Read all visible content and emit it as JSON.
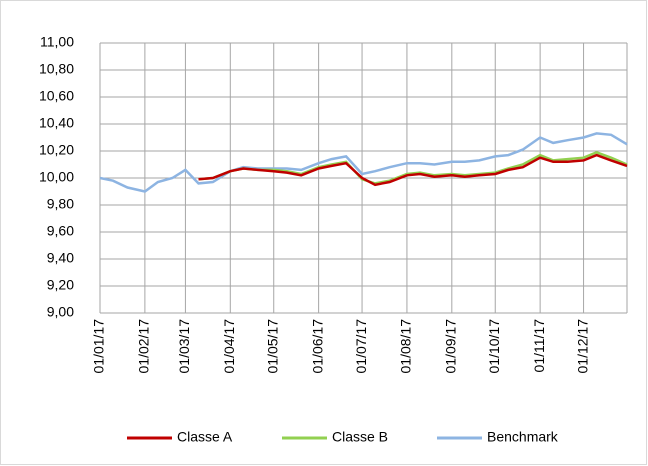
{
  "chart_data": {
    "type": "line",
    "x": [
      "01/01/17",
      "10/01/17",
      "20/01/17",
      "01/02/17",
      "10/02/17",
      "20/02/17",
      "01/03/17",
      "10/03/17",
      "20/03/17",
      "01/04/17",
      "10/04/17",
      "20/04/17",
      "01/05/17",
      "10/05/17",
      "20/05/17",
      "01/06/17",
      "10/06/17",
      "20/06/17",
      "01/07/17",
      "10/07/17",
      "20/07/17",
      "01/08/17",
      "10/08/17",
      "20/08/17",
      "01/09/17",
      "10/09/17",
      "20/09/17",
      "01/10/17",
      "10/10/17",
      "20/10/17",
      "01/11/17",
      "10/11/17",
      "20/11/17",
      "01/12/17",
      "10/12/17",
      "20/12/17",
      "31/12/17"
    ],
    "series": [
      {
        "name": "Classe A",
        "color": "#c00000",
        "values": [
          null,
          null,
          null,
          null,
          null,
          null,
          null,
          9.99,
          10.0,
          10.05,
          10.07,
          10.06,
          10.05,
          10.04,
          10.02,
          10.07,
          10.09,
          10.11,
          10.0,
          9.95,
          9.97,
          10.02,
          10.03,
          10.01,
          10.02,
          10.01,
          10.02,
          10.03,
          10.06,
          10.08,
          10.15,
          10.12,
          10.12,
          10.13,
          10.17,
          10.13,
          10.09
        ]
      },
      {
        "name": "Classe B",
        "color": "#92d050",
        "values": [
          null,
          null,
          null,
          null,
          null,
          null,
          null,
          9.99,
          10.0,
          10.05,
          10.07,
          10.06,
          10.06,
          10.05,
          10.03,
          10.08,
          10.1,
          10.12,
          9.99,
          9.96,
          9.98,
          10.03,
          10.04,
          10.02,
          10.03,
          10.02,
          10.03,
          10.04,
          10.07,
          10.1,
          10.17,
          10.13,
          10.14,
          10.15,
          10.19,
          10.15,
          10.1
        ]
      },
      {
        "name": "Benchmark",
        "color": "#8db4e2",
        "values": [
          10.0,
          9.98,
          9.93,
          9.9,
          9.97,
          10.0,
          10.06,
          9.96,
          9.97,
          10.05,
          10.08,
          10.07,
          10.07,
          10.07,
          10.06,
          10.11,
          10.14,
          10.16,
          10.03,
          10.05,
          10.08,
          10.11,
          10.11,
          10.1,
          10.12,
          10.12,
          10.13,
          10.16,
          10.17,
          10.21,
          10.3,
          10.26,
          10.28,
          10.3,
          10.33,
          10.32,
          10.25
        ]
      }
    ],
    "xticks": [
      "01/01/17",
      "01/02/17",
      "01/03/17",
      "01/04/17",
      "01/05/17",
      "01/06/17",
      "01/07/17",
      "01/08/17",
      "01/09/17",
      "01/10/17",
      "01/11/17",
      "01/12/17"
    ],
    "ylim": [
      9,
      11
    ],
    "yticks": [
      {
        "value": 9,
        "label": "9,00"
      },
      {
        "value": 9.2,
        "label": "9,20"
      },
      {
        "value": 9.4,
        "label": "9,40"
      },
      {
        "value": 9.6,
        "label": "9,60"
      },
      {
        "value": 9.8,
        "label": "9,80"
      },
      {
        "value": 10,
        "label": "10,00"
      },
      {
        "value": 10.2,
        "label": "10,20"
      },
      {
        "value": 10.4,
        "label": "10,40"
      },
      {
        "value": 10.6,
        "label": "10,60"
      },
      {
        "value": 10.8,
        "label": "10,80"
      },
      {
        "value": 11,
        "label": "11,00"
      }
    ],
    "grid": true,
    "legend": "bottom"
  }
}
